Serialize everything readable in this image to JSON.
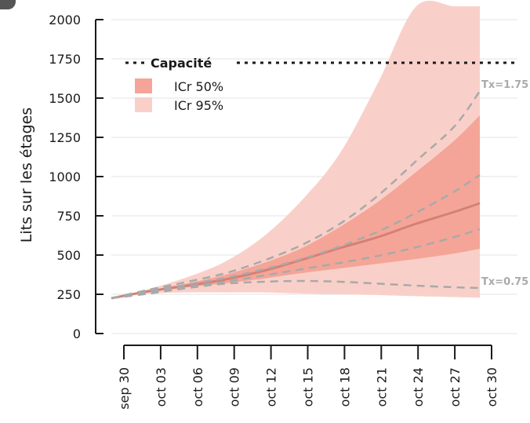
{
  "chart_data": {
    "type": "area",
    "ylabel": "Lits sur les étages",
    "ylim": [
      0,
      2000
    ],
    "yticks": [
      "0",
      "250",
      "500",
      "750",
      "1000",
      "1250",
      "1500",
      "1750",
      "2000"
    ],
    "x_dates": [
      "sep 30",
      "oct 03",
      "oct 06",
      "oct 09",
      "oct 12",
      "oct 15",
      "oct 18",
      "oct 21",
      "oct 24",
      "oct 27",
      "oct 30"
    ],
    "x": [
      0,
      3,
      6,
      9,
      12,
      15,
      18,
      21,
      24,
      27,
      29
    ],
    "capacity": {
      "label": "Capacité",
      "value": 1725
    },
    "legend": [
      {
        "label": "ICr 50%",
        "color": "#f4a597"
      },
      {
        "label": "ICr 95%",
        "color": "#f9d0c9"
      }
    ],
    "series": [
      {
        "role": "median",
        "values": [
          225,
          270,
          305,
          345,
          400,
          470,
          545,
          615,
          700,
          775,
          830
        ]
      },
      {
        "role": "ci50_upper",
        "values": [
          225,
          275,
          320,
          375,
          450,
          545,
          680,
          840,
          1030,
          1230,
          1390
        ]
      },
      {
        "role": "ci50_lower",
        "values": [
          225,
          265,
          295,
          320,
          350,
          385,
          415,
          445,
          475,
          510,
          540
        ]
      },
      {
        "role": "ci95_upper",
        "values": [
          225,
          285,
          360,
          460,
          620,
          850,
          1150,
          1600,
          2200,
          2100,
          2100
        ]
      },
      {
        "role": "ci95_lower",
        "values": [
          225,
          255,
          262,
          262,
          262,
          255,
          250,
          245,
          238,
          232,
          228
        ]
      },
      {
        "role": "scenario",
        "label": "Tx=1.75",
        "values": [
          225,
          280,
          330,
          385,
          465,
          565,
          700,
          880,
          1100,
          1320,
          1545
        ]
      },
      {
        "role": "scenario",
        "label": "",
        "values": [
          225,
          272,
          312,
          355,
          410,
          475,
          555,
          650,
          770,
          905,
          1010
        ]
      },
      {
        "role": "scenario",
        "label": "",
        "values": [
          225,
          265,
          298,
          330,
          370,
          410,
          450,
          495,
          550,
          615,
          665
        ]
      },
      {
        "role": "scenario",
        "label": "Tx=0.75",
        "values": [
          225,
          255,
          290,
          318,
          330,
          335,
          330,
          318,
          305,
          295,
          290
        ]
      }
    ],
    "grid": "horizontal",
    "legend_position": "top-left"
  }
}
